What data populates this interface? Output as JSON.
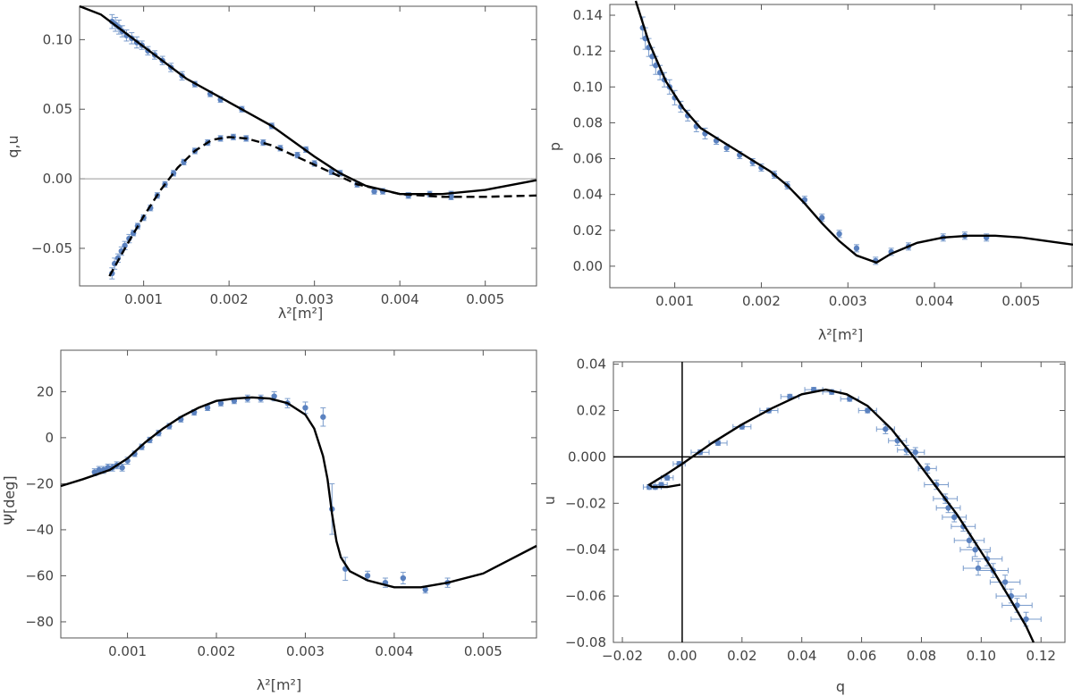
{
  "figure": {
    "panels": [
      "q-u-vs-lambda2",
      "p-vs-lambda2",
      "psi-vs-lambda2",
      "u-vs-q"
    ]
  },
  "chart_data": [
    {
      "id": "q-u-vs-lambda2",
      "type": "scatter",
      "title": "",
      "xlabel": "λ²[m²]",
      "ylabel": "q,u",
      "xlim": [
        0.00025,
        0.0056
      ],
      "ylim": [
        -0.077,
        0.124
      ],
      "xticks": [
        0.001,
        0.002,
        0.003,
        0.004,
        0.005
      ],
      "xtick_labels": [
        "0.001",
        "0.002",
        "0.003",
        "0.004",
        "0.005"
      ],
      "yticks": [
        -0.05,
        0.0,
        0.05,
        0.1
      ],
      "ytick_labels": [
        "−0.05",
        "0.00",
        "0.05",
        "0.10"
      ],
      "zero_line": true,
      "series": [
        {
          "name": "q data",
          "style": "points",
          "x": [
            0.00063,
            0.00067,
            0.00071,
            0.00075,
            0.0008,
            0.00086,
            0.00092,
            0.00098,
            0.00105,
            0.00113,
            0.00122,
            0.00132,
            0.00145,
            0.0016,
            0.00178,
            0.0019,
            0.00215,
            0.0025,
            0.0029,
            0.0033,
            0.0037,
            0.0041,
            0.00435,
            0.0046
          ],
          "y": [
            0.113,
            0.111,
            0.109,
            0.106,
            0.103,
            0.101,
            0.098,
            0.096,
            0.092,
            0.089,
            0.085,
            0.08,
            0.074,
            0.068,
            0.061,
            0.057,
            0.05,
            0.038,
            0.021,
            0.004,
            -0.009,
            -0.012,
            -0.011,
            -0.011
          ],
          "err": [
            0.005,
            0.005,
            0.005,
            0.004,
            0.004,
            0.004,
            0.004,
            0.003,
            0.003,
            0.003,
            0.003,
            0.003,
            0.003,
            0.002,
            0.002,
            0.002,
            0.002,
            0.002,
            0.002,
            0.002,
            0.002,
            0.002,
            0.002,
            0.002
          ]
        },
        {
          "name": "u data",
          "style": "points",
          "x": [
            0.00063,
            0.00066,
            0.0007,
            0.00074,
            0.00078,
            0.00083,
            0.00088,
            0.00093,
            0.001,
            0.00108,
            0.00116,
            0.00125,
            0.00135,
            0.00147,
            0.0016,
            0.00175,
            0.0019,
            0.00205,
            0.0022,
            0.0024,
            0.0026,
            0.0028,
            0.003,
            0.0032,
            0.0035,
            0.0038,
            0.0041,
            0.0046
          ],
          "y": [
            -0.068,
            -0.061,
            -0.057,
            -0.052,
            -0.048,
            -0.043,
            -0.039,
            -0.034,
            -0.028,
            -0.021,
            -0.012,
            -0.004,
            0.004,
            0.012,
            0.02,
            0.026,
            0.029,
            0.03,
            0.029,
            0.026,
            0.022,
            0.017,
            0.011,
            0.005,
            -0.004,
            -0.009,
            -0.012,
            -0.013
          ],
          "err": [
            0.004,
            0.004,
            0.003,
            0.003,
            0.003,
            0.003,
            0.002,
            0.002,
            0.002,
            0.002,
            0.002,
            0.002,
            0.002,
            0.002,
            0.002,
            0.002,
            0.002,
            0.002,
            0.002,
            0.002,
            0.002,
            0.002,
            0.002,
            0.002,
            0.002,
            0.002,
            0.002,
            0.002
          ]
        },
        {
          "name": "q model",
          "style": "solid",
          "x": [
            0.00025,
            0.0005,
            0.001,
            0.0015,
            0.002,
            0.0025,
            0.003,
            0.0033,
            0.0036,
            0.004,
            0.0045,
            0.005,
            0.0056
          ],
          "y": [
            0.124,
            0.118,
            0.095,
            0.072,
            0.055,
            0.038,
            0.016,
            0.004,
            -0.005,
            -0.011,
            -0.011,
            -0.008,
            -0.001
          ]
        },
        {
          "name": "u model",
          "style": "dashed",
          "x": [
            0.0006,
            0.0008,
            0.001,
            0.0012,
            0.0014,
            0.0016,
            0.0018,
            0.002,
            0.0022,
            0.0025,
            0.003,
            0.0035,
            0.004,
            0.0045,
            0.005,
            0.0056
          ],
          "y": [
            -0.07,
            -0.048,
            -0.027,
            -0.008,
            0.008,
            0.02,
            0.028,
            0.03,
            0.029,
            0.024,
            0.01,
            -0.004,
            -0.011,
            -0.013,
            -0.013,
            -0.012
          ]
        }
      ]
    },
    {
      "id": "p-vs-lambda2",
      "type": "scatter",
      "title": "",
      "xlabel": "λ²[m²]",
      "ylabel": "p",
      "xlim": [
        0.00025,
        0.0056
      ],
      "ylim": [
        -0.012,
        0.146
      ],
      "xticks": [
        0.001,
        0.002,
        0.003,
        0.004,
        0.005
      ],
      "xtick_labels": [
        "0.001",
        "0.002",
        "0.003",
        "0.004",
        "0.005"
      ],
      "yticks": [
        0.0,
        0.02,
        0.04,
        0.06,
        0.08,
        0.1,
        0.12,
        0.14
      ],
      "ytick_labels": [
        "0.00",
        "0.02",
        "0.04",
        "0.06",
        "0.08",
        "0.10",
        "0.12",
        "0.14"
      ],
      "zero_line": false,
      "series": [
        {
          "name": "p data",
          "style": "points",
          "x": [
            0.00063,
            0.00066,
            0.0007,
            0.00074,
            0.00078,
            0.00083,
            0.00088,
            0.00094,
            0.001,
            0.00107,
            0.00115,
            0.00125,
            0.00135,
            0.00148,
            0.0016,
            0.00175,
            0.0019,
            0.002,
            0.00215,
            0.0023,
            0.0025,
            0.0027,
            0.0029,
            0.0031,
            0.00332,
            0.0035,
            0.0037,
            0.0041,
            0.00435,
            0.0046
          ],
          "y": [
            0.133,
            0.127,
            0.122,
            0.117,
            0.112,
            0.108,
            0.104,
            0.1,
            0.094,
            0.089,
            0.084,
            0.078,
            0.074,
            0.07,
            0.066,
            0.062,
            0.058,
            0.055,
            0.051,
            0.045,
            0.037,
            0.027,
            0.018,
            0.01,
            0.003,
            0.008,
            0.011,
            0.016,
            0.017,
            0.016
          ],
          "err": [
            0.006,
            0.006,
            0.005,
            0.005,
            0.005,
            0.004,
            0.004,
            0.004,
            0.004,
            0.003,
            0.003,
            0.003,
            0.003,
            0.002,
            0.002,
            0.002,
            0.002,
            0.002,
            0.002,
            0.002,
            0.002,
            0.002,
            0.002,
            0.002,
            0.002,
            0.002,
            0.002,
            0.002,
            0.002,
            0.002
          ]
        },
        {
          "name": "p model",
          "style": "solid",
          "x": [
            0.00055,
            0.0007,
            0.0009,
            0.0011,
            0.0013,
            0.0015,
            0.0017,
            0.0019,
            0.0021,
            0.0023,
            0.0025,
            0.0027,
            0.0029,
            0.0031,
            0.00333,
            0.0035,
            0.0038,
            0.0041,
            0.0044,
            0.0047,
            0.005,
            0.0053,
            0.0056
          ],
          "y": [
            0.148,
            0.125,
            0.103,
            0.088,
            0.077,
            0.071,
            0.065,
            0.059,
            0.053,
            0.045,
            0.035,
            0.024,
            0.014,
            0.006,
            0.002,
            0.007,
            0.013,
            0.016,
            0.017,
            0.017,
            0.016,
            0.014,
            0.012
          ]
        }
      ]
    },
    {
      "id": "psi-vs-lambda2",
      "type": "scatter",
      "title": "",
      "xlabel": "λ²[m²]",
      "ylabel": "Ψ[deg]",
      "xlim": [
        0.00025,
        0.0056
      ],
      "ylim": [
        -87,
        38
      ],
      "xticks": [
        0.001,
        0.002,
        0.003,
        0.004,
        0.005
      ],
      "xtick_labels": [
        "0.001",
        "0.002",
        "0.003",
        "0.004",
        "0.005"
      ],
      "yticks": [
        -80,
        -60,
        -40,
        -20,
        0,
        20
      ],
      "ytick_labels": [
        "−80",
        "−60",
        "−40",
        "−20",
        "0",
        "20"
      ],
      "zero_line": false,
      "series": [
        {
          "name": "Psi data",
          "style": "points",
          "x": [
            0.00063,
            0.00068,
            0.00073,
            0.00078,
            0.00083,
            0.00088,
            0.00094,
            0.001,
            0.00108,
            0.00116,
            0.00125,
            0.00135,
            0.00147,
            0.0016,
            0.00175,
            0.0019,
            0.00205,
            0.0022,
            0.00235,
            0.0025,
            0.00265,
            0.0028,
            0.003,
            0.0032,
            0.0033,
            0.00345,
            0.0037,
            0.0039,
            0.0041,
            0.00435,
            0.0046
          ],
          "y": [
            -15,
            -14,
            -14,
            -13,
            -13,
            -12,
            -13,
            -10,
            -7,
            -4,
            -1,
            2,
            5,
            8,
            11,
            13,
            15,
            16,
            17,
            17,
            18,
            15,
            13,
            9,
            -31,
            -57,
            -60,
            -63,
            -61,
            -66,
            -63
          ],
          "err": [
            1.5,
            1.5,
            1.5,
            1.5,
            1.5,
            1.5,
            1.5,
            1.5,
            1.2,
            1.2,
            1.2,
            1.2,
            1.2,
            1.2,
            1.2,
            1.2,
            1.2,
            1.2,
            1.5,
            1.5,
            2,
            2,
            2.5,
            4,
            11,
            5,
            2,
            2,
            2.5,
            1.5,
            2
          ]
        },
        {
          "name": "Psi model",
          "style": "solid",
          "x": [
            0.00025,
            0.0005,
            0.0008,
            0.001,
            0.0012,
            0.0014,
            0.0016,
            0.0018,
            0.002,
            0.0022,
            0.0024,
            0.0026,
            0.0028,
            0.003,
            0.0031,
            0.0032,
            0.00325,
            0.0033,
            0.00335,
            0.0034,
            0.0035,
            0.0037,
            0.004,
            0.0043,
            0.0046,
            0.005,
            0.0053,
            0.0056
          ],
          "y": [
            -21,
            -18,
            -14,
            -9,
            -2,
            4,
            9,
            13,
            16,
            17,
            17.5,
            17,
            15,
            10,
            4,
            -8,
            -18,
            -33,
            -45,
            -52,
            -58,
            -62,
            -65,
            -65,
            -63,
            -59,
            -53,
            -47
          ]
        }
      ]
    },
    {
      "id": "u-vs-q",
      "type": "scatter",
      "title": "",
      "xlabel": "q",
      "ylabel": "u",
      "xlim": [
        -0.023,
        0.128
      ],
      "ylim": [
        -0.08,
        0.041
      ],
      "xticks": [
        -0.02,
        0.0,
        0.02,
        0.04,
        0.06,
        0.08,
        0.1,
        0.12
      ],
      "xtick_labels": [
        "−0.02",
        "0.00",
        "0.02",
        "0.04",
        "0.06",
        "0.08",
        "0.10",
        "0.12"
      ],
      "yticks": [
        -0.08,
        -0.06,
        -0.04,
        -0.02,
        0.0,
        0.02,
        0.04
      ],
      "ytick_labels": [
        "−0.08",
        "−0.06",
        "−0.04",
        "−0.02",
        "0.000",
        "0.02",
        "0.04"
      ],
      "zero_line": true,
      "series": [
        {
          "name": "u vs q data",
          "style": "points",
          "x": [
            -0.011,
            -0.009,
            -0.007,
            -0.005,
            -0.001,
            0.006,
            0.012,
            0.02,
            0.029,
            0.036,
            0.044,
            0.05,
            0.056,
            0.062,
            0.068,
            0.072,
            0.075,
            0.078,
            0.082,
            0.085,
            0.088,
            0.089,
            0.091,
            0.094,
            0.096,
            0.098,
            0.099,
            0.102,
            0.104,
            0.108,
            0.11,
            0.112,
            0.115
          ],
          "y": [
            -0.013,
            -0.013,
            -0.012,
            -0.009,
            -0.003,
            0.002,
            0.006,
            0.013,
            0.02,
            0.026,
            0.029,
            0.028,
            0.025,
            0.02,
            0.012,
            0.007,
            0.003,
            0.002,
            -0.005,
            -0.012,
            -0.018,
            -0.022,
            -0.026,
            -0.03,
            -0.036,
            -0.04,
            -0.048,
            -0.044,
            -0.049,
            -0.054,
            -0.06,
            -0.064,
            -0.07
          ],
          "xerr": [
            0.002,
            0.002,
            0.002,
            0.002,
            0.002,
            0.003,
            0.003,
            0.003,
            0.003,
            0.003,
            0.003,
            0.003,
            0.003,
            0.003,
            0.003,
            0.003,
            0.003,
            0.003,
            0.003,
            0.004,
            0.004,
            0.004,
            0.004,
            0.004,
            0.005,
            0.005,
            0.005,
            0.005,
            0.005,
            0.005,
            0.005,
            0.005,
            0.005
          ],
          "yerr": [
            0.001,
            0.001,
            0.001,
            0.001,
            0.001,
            0.001,
            0.001,
            0.001,
            0.001,
            0.001,
            0.001,
            0.001,
            0.001,
            0.001,
            0.002,
            0.002,
            0.002,
            0.002,
            0.002,
            0.002,
            0.002,
            0.002,
            0.002,
            0.002,
            0.003,
            0.003,
            0.003,
            0.003,
            0.003,
            0.003,
            0.003,
            0.003,
            0.003
          ]
        },
        {
          "name": "u vs q model",
          "style": "solid",
          "x": [
            -0.0005,
            -0.005,
            -0.01,
            -0.011,
            -0.006,
            0.0,
            0.01,
            0.02,
            0.03,
            0.04,
            0.048,
            0.055,
            0.062,
            0.07,
            0.078,
            0.085,
            0.092,
            0.098,
            0.104,
            0.11,
            0.115,
            0.1175
          ],
          "y": [
            -0.012,
            -0.013,
            -0.013,
            -0.012,
            -0.008,
            -0.003,
            0.006,
            0.014,
            0.021,
            0.027,
            0.029,
            0.027,
            0.022,
            0.012,
            -0.001,
            -0.013,
            -0.025,
            -0.037,
            -0.049,
            -0.062,
            -0.073,
            -0.08
          ]
        }
      ]
    }
  ]
}
